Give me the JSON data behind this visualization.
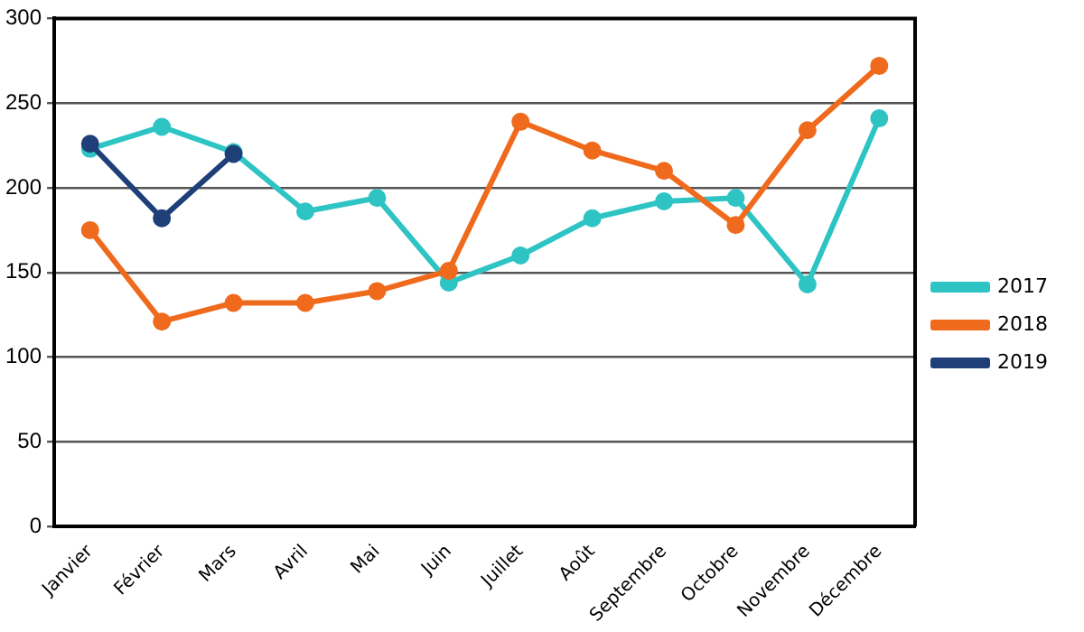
{
  "chart_data": {
    "type": "line",
    "categories": [
      "Janvier",
      "Février",
      "Mars",
      "Avril",
      "Mai",
      "Juin",
      "Juillet",
      "Août",
      "Septembre",
      "Octobre",
      "Novembre",
      "Décembre"
    ],
    "series": [
      {
        "name": "2017",
        "color": "#2ec4c4",
        "values": [
          223,
          236,
          221,
          186,
          194,
          144,
          160,
          182,
          192,
          194,
          143,
          241
        ]
      },
      {
        "name": "2018",
        "color": "#ef6a1c",
        "values": [
          175,
          121,
          132,
          132,
          139,
          151,
          239,
          222,
          210,
          178,
          234,
          272
        ]
      },
      {
        "name": "2019",
        "color": "#1e3f78",
        "values": [
          226,
          182,
          220,
          null,
          null,
          null,
          null,
          null,
          null,
          null,
          null,
          null
        ]
      }
    ],
    "ylim": [
      0,
      300
    ],
    "yticks": [
      0,
      50,
      100,
      150,
      200,
      250,
      300
    ],
    "grid": "y",
    "legend": "right",
    "marker": "circle",
    "line_style": "solid"
  }
}
